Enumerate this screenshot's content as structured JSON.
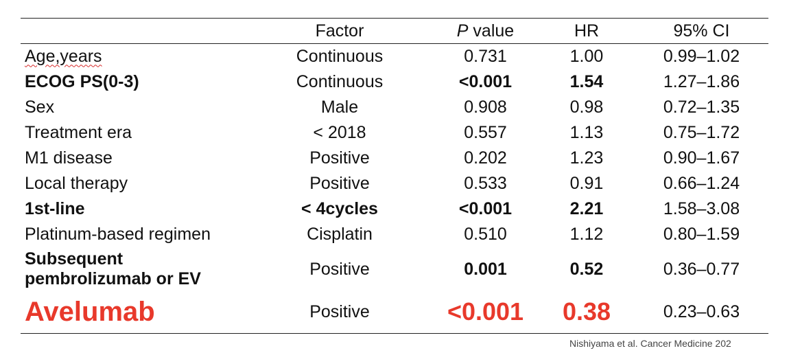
{
  "table": {
    "headers": [
      "",
      "Factor",
      "P value",
      "HR",
      "95% CI"
    ],
    "rows": [
      {
        "variable": "Age,years",
        "factor": "Continuous",
        "p": "0.731",
        "hr": "1.00",
        "ci": "0.99–1.02"
      },
      {
        "variable": "ECOG PS(0-3)",
        "factor": "Continuous",
        "p": "<0.001",
        "hr": "1.54",
        "ci": "1.27–1.86"
      },
      {
        "variable": "Sex",
        "factor": "Male",
        "p": "0.908",
        "hr": "0.98",
        "ci": "0.72–1.35"
      },
      {
        "variable": "Treatment era",
        "factor": "< 2018",
        "p": "0.557",
        "hr": "1.13",
        "ci": "0.75–1.72"
      },
      {
        "variable": "M1 disease",
        "factor": "Positive",
        "p": "0.202",
        "hr": "1.23",
        "ci": "0.90–1.67"
      },
      {
        "variable": "Local therapy",
        "factor": "Positive",
        "p": "0.533",
        "hr": "0.91",
        "ci": "0.66–1.24"
      },
      {
        "variable": "1st-line",
        "factor": "< 4cycles",
        "p": "<0.001",
        "hr": "2.21",
        "ci": "1.58–3.08"
      },
      {
        "variable": "Platinum-based regimen",
        "factor": "Cisplatin",
        "p": "0.510",
        "hr": "1.12",
        "ci": "0.80–1.59"
      },
      {
        "variable": "Subsequent pembrolizumab or EV",
        "factor": "Positive",
        "p": "0.001",
        "hr": "0.52",
        "ci": "0.36–0.77"
      },
      {
        "variable": "Avelumab",
        "factor": "Positive",
        "p": "<0.001",
        "hr": "0.38",
        "ci": "0.23–0.63"
      }
    ]
  },
  "highlight_color": "#e8392b",
  "footer": "Nishiyama et al. Cancer Medicine 202"
}
